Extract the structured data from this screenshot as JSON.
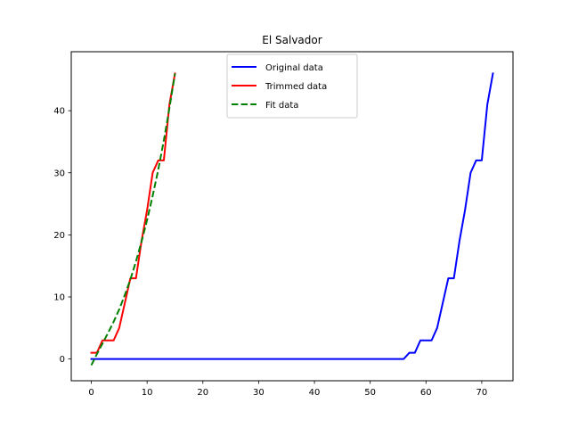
{
  "chart_data": {
    "type": "line",
    "title": "El Salvador",
    "xlabel": "",
    "ylabel": "",
    "xlim": [
      -3.6,
      75.6
    ],
    "ylim": [
      -3.5,
      49.5
    ],
    "xticks": [
      0,
      10,
      20,
      30,
      40,
      50,
      60,
      70
    ],
    "yticks": [
      0,
      10,
      20,
      30,
      40
    ],
    "grid": false,
    "legend_position": "top-center",
    "series": [
      {
        "name": "Original data",
        "color": "#0000ff",
        "dash": "solid",
        "x": [
          0,
          1,
          2,
          3,
          4,
          5,
          6,
          7,
          8,
          9,
          10,
          11,
          12,
          13,
          14,
          15,
          16,
          17,
          18,
          19,
          20,
          21,
          22,
          23,
          24,
          25,
          26,
          27,
          28,
          29,
          30,
          31,
          32,
          33,
          34,
          35,
          36,
          37,
          38,
          39,
          40,
          41,
          42,
          43,
          44,
          45,
          46,
          47,
          48,
          49,
          50,
          51,
          52,
          53,
          54,
          55,
          56,
          57,
          58,
          59,
          60,
          61,
          62,
          63,
          64,
          65,
          66,
          67,
          68,
          69,
          70,
          71,
          72
        ],
        "y": [
          0,
          0,
          0,
          0,
          0,
          0,
          0,
          0,
          0,
          0,
          0,
          0,
          0,
          0,
          0,
          0,
          0,
          0,
          0,
          0,
          0,
          0,
          0,
          0,
          0,
          0,
          0,
          0,
          0,
          0,
          0,
          0,
          0,
          0,
          0,
          0,
          0,
          0,
          0,
          0,
          0,
          0,
          0,
          0,
          0,
          0,
          0,
          0,
          0,
          0,
          0,
          0,
          0,
          0,
          0,
          0,
          0,
          1,
          1,
          3,
          3,
          3,
          5,
          9,
          13,
          13,
          19,
          24,
          30,
          32,
          32,
          41,
          46
        ]
      },
      {
        "name": "Trimmed data",
        "color": "#ff0000",
        "dash": "solid",
        "x": [
          0,
          1,
          2,
          3,
          4,
          5,
          6,
          7,
          8,
          9,
          10,
          11,
          12,
          13,
          14,
          15
        ],
        "y": [
          1,
          1,
          3,
          3,
          3,
          5,
          9,
          13,
          13,
          19,
          24,
          30,
          32,
          32,
          41,
          46
        ]
      },
      {
        "name": "Fit data",
        "color": "#008000",
        "dash": "dashed",
        "x": [
          0,
          1,
          2,
          3,
          4,
          5,
          6,
          7,
          8,
          9,
          10,
          11,
          12,
          13,
          14,
          15
        ],
        "y": [
          -1,
          0.8,
          2.5,
          4.2,
          6,
          8,
          10.3,
          12.8,
          15.7,
          18.9,
          22.4,
          26.3,
          30.5,
          35.2,
          40.4,
          46
        ]
      }
    ]
  }
}
